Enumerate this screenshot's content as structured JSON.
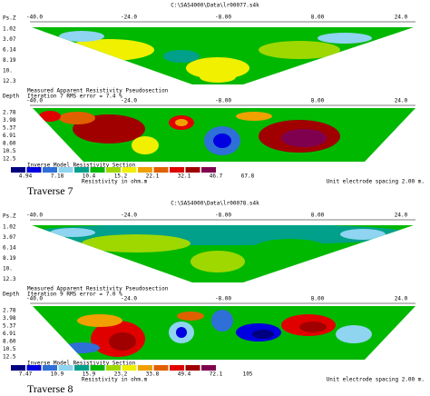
{
  "panels": [
    {
      "file": "C:\\SAS4000\\Data\\lr00077.s4k",
      "pseudo_axis": [
        "-40.0",
        "-24.0",
        "-8.00",
        "8.00",
        "24.0"
      ],
      "pseudo_label": "Ps.Z",
      "pseudo_depths": [
        "1.02",
        "3.07",
        "6.14",
        "8.19",
        "10.",
        "12.3"
      ],
      "pseudo_caption": "Measured Apparent Resistivity Pseudosection",
      "inverse_label": "Depth",
      "iteration": "Iteration 7 RMS error = 7.4 %",
      "inverse_axis": [
        "-40.0",
        "-24.0",
        "-8.00",
        "8.00",
        "24.0"
      ],
      "inverse_depths": [
        "2.78",
        "3.98",
        "5.37",
        "6.91",
        "8.60",
        "10.5",
        "12.5"
      ],
      "inverse_caption": "Inverse Model Resistivity Section",
      "scale_values": [
        "4.94",
        "7.18",
        "10.4",
        "15.2",
        "22.1",
        "32.1",
        "46.7",
        "67.8"
      ],
      "scale_unit": "Resistivity in ohm.m",
      "spacing": "Unit electrode spacing 2.00 m.",
      "traverse": "Traverse 7"
    },
    {
      "file": "C:\\SAS4000\\Data\\lr00078.s4k",
      "pseudo_axis": [
        "-40.0",
        "-24.0",
        "-8.00",
        "8.00",
        "24.0"
      ],
      "pseudo_label": "Ps.Z",
      "pseudo_depths": [
        "1.02",
        "3.07",
        "6.14",
        "8.19",
        "10.",
        "12.3"
      ],
      "pseudo_caption": "Measured Apparent Resistivity Pseudosection",
      "inverse_label": "Depth",
      "iteration": "Iteration 9 RMS error = 7.0 %",
      "inverse_axis": [
        "-40.0",
        "-24.0",
        "-8.00",
        "8.00",
        "24.0"
      ],
      "inverse_depths": [
        "2.78",
        "3.98",
        "5.37",
        "6.91",
        "8.60",
        "10.5",
        "12.5"
      ],
      "inverse_caption": "Inverse Model Resistivity Section",
      "scale_values": [
        "7.47",
        "10.9",
        "15.9",
        "23.2",
        "33.8",
        "49.4",
        "72.1",
        "105"
      ],
      "scale_unit": "Resistivity in ohm.m",
      "spacing": "Unit electrode spacing 2.00 m.",
      "traverse": "Traverse 8"
    }
  ]
}
